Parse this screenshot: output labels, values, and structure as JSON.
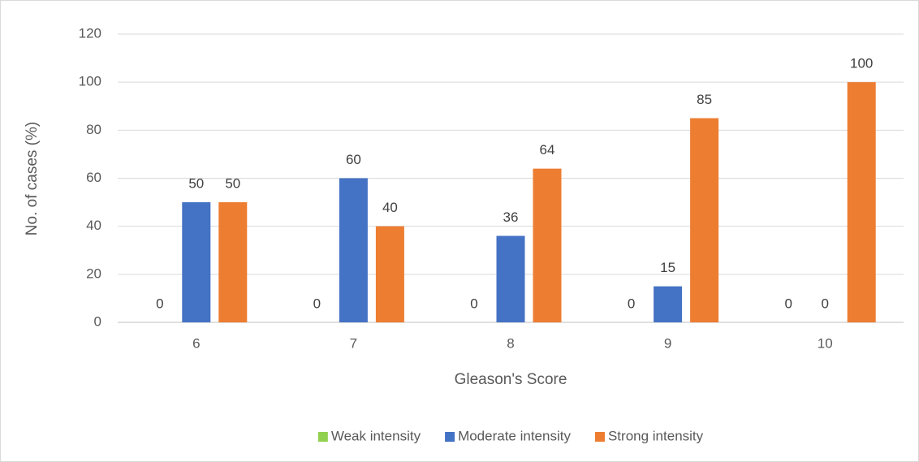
{
  "chart_data": {
    "type": "bar",
    "categories": [
      "6",
      "7",
      "8",
      "9",
      "10"
    ],
    "series": [
      {
        "name": "Weak intensity",
        "color": "#92d050",
        "values": [
          0,
          0,
          0,
          0,
          0
        ]
      },
      {
        "name": "Moderate intensity",
        "color": "#4472c4",
        "values": [
          50,
          60,
          36,
          15,
          0
        ]
      },
      {
        "name": "Strong intensity",
        "color": "#ed7d31",
        "values": [
          50,
          40,
          64,
          85,
          100
        ]
      }
    ],
    "x_label": "Gleason's Score",
    "y_label": "No. of cases (%)",
    "ylim": [
      0,
      120
    ],
    "yticks": [
      0,
      20,
      40,
      60,
      80,
      100,
      120
    ],
    "grid": true,
    "legend": "bottom"
  }
}
